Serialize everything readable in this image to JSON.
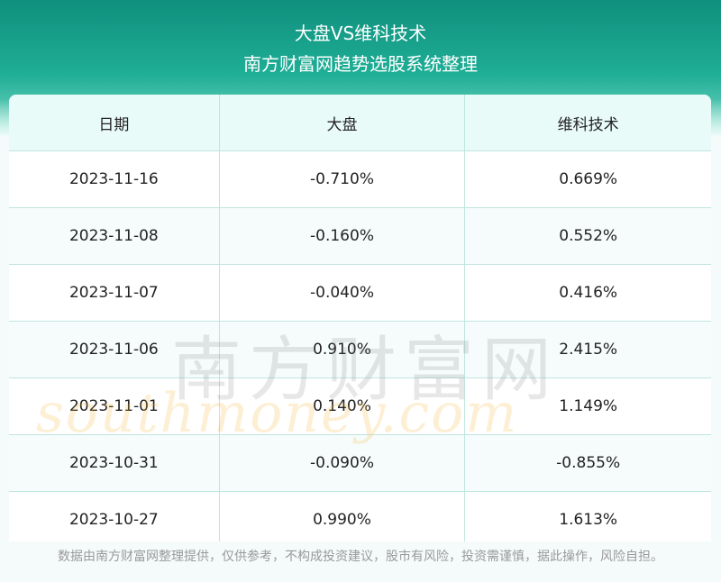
{
  "header": {
    "title_line1": "大盘VS维科技术",
    "title_line2": "南方财富网趋势选股系统整理"
  },
  "table": {
    "columns": [
      "日期",
      "大盘",
      "维科技术"
    ],
    "rows": [
      {
        "date": "2023-11-16",
        "market": "-0.710%",
        "stock": "0.669%"
      },
      {
        "date": "2023-11-08",
        "market": "-0.160%",
        "stock": "0.552%"
      },
      {
        "date": "2023-11-07",
        "market": "-0.040%",
        "stock": "0.416%"
      },
      {
        "date": "2023-11-06",
        "market": "0.910%",
        "stock": "2.415%"
      },
      {
        "date": "2023-11-01",
        "market": "0.140%",
        "stock": "1.149%"
      },
      {
        "date": "2023-10-31",
        "market": "-0.090%",
        "stock": "-0.855%"
      },
      {
        "date": "2023-10-27",
        "market": "0.990%",
        "stock": "1.613%"
      }
    ]
  },
  "watermark": {
    "chinese": "南方财富网",
    "english": "southmoney.com"
  },
  "footer": {
    "disclaimer": "数据由南方财富网整理提供，仅供参考，不构成投资建议，股市有风险，投资需谨慎，据此操作，风险自担。"
  },
  "colors": {
    "header_green": "#1fae96",
    "grid_line": "#bfe6df",
    "header_row_bg": "#e9fbf8"
  }
}
